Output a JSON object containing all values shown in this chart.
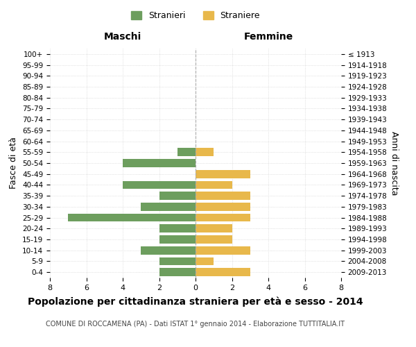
{
  "age_groups": [
    "100+",
    "95-99",
    "90-94",
    "85-89",
    "80-84",
    "75-79",
    "70-74",
    "65-69",
    "60-64",
    "55-59",
    "50-54",
    "45-49",
    "40-44",
    "35-39",
    "30-34",
    "25-29",
    "20-24",
    "15-19",
    "10-14",
    "5-9",
    "0-4"
  ],
  "birth_years": [
    "≤ 1913",
    "1914-1918",
    "1919-1923",
    "1924-1928",
    "1929-1933",
    "1934-1938",
    "1939-1943",
    "1944-1948",
    "1949-1953",
    "1954-1958",
    "1959-1963",
    "1964-1968",
    "1969-1973",
    "1974-1978",
    "1979-1983",
    "1984-1988",
    "1989-1993",
    "1994-1998",
    "1999-2003",
    "2004-2008",
    "2009-2013"
  ],
  "males": [
    0,
    0,
    0,
    0,
    0,
    0,
    0,
    0,
    0,
    1,
    4,
    0,
    4,
    2,
    3,
    7,
    2,
    2,
    3,
    2,
    2
  ],
  "females": [
    0,
    0,
    0,
    0,
    0,
    0,
    0,
    0,
    0,
    1,
    0,
    3,
    2,
    3,
    3,
    3,
    2,
    2,
    3,
    1,
    3
  ],
  "male_color": "#6d9e5e",
  "female_color": "#e8b84b",
  "title": "Popolazione per cittadinanza straniera per età e sesso - 2014",
  "subtitle": "COMUNE DI ROCCAMENA (PA) - Dati ISTAT 1° gennaio 2014 - Elaborazione TUTTITALIA.IT",
  "ylabel_left": "Fasce di età",
  "ylabel_right": "Anni di nascita",
  "xlabel_left": "Maschi",
  "xlabel_right": "Femmine",
  "legend_male": "Stranieri",
  "legend_female": "Straniere",
  "xlim": 8,
  "background_color": "#ffffff",
  "grid_color": "#cccccc"
}
